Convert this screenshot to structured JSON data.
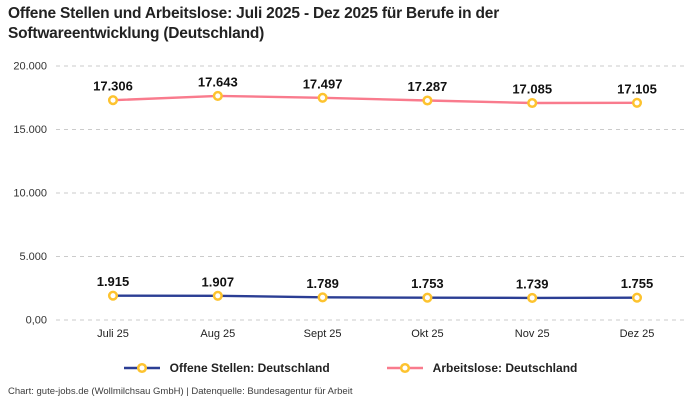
{
  "title": "Offene Stellen und Arbeitslose: Juli 2025 - Dez 2025 für Berufe in der Softwareentwicklung (Deutschland)",
  "credit": "Chart: gute-jobs.de (Wollmilchsau GmbH) | Datenquelle: Bundesagentur für Arbeit",
  "colors": {
    "series_open_positions": "#2B3E94",
    "series_unemployed": "#F97B8D",
    "marker_ring": "#FDC32F",
    "marker_fill": "#FFFFFF",
    "grid": "#CBCBCB",
    "title_text": "#222222",
    "axis_text": "#333333",
    "point_label_text": "#111111",
    "background": "#FFFFFF"
  },
  "chart_data": {
    "type": "line",
    "title": "Offene Stellen und Arbeitslose: Juli 2025 - Dez 2025 für Berufe in der Softwareentwicklung (Deutschland)",
    "categories": [
      "Juli 25",
      "Aug 25",
      "Sept 25",
      "Okt 25",
      "Nov 25",
      "Dez 25"
    ],
    "series": [
      {
        "name": "Offene Stellen: Deutschland",
        "color": "#2B3E94",
        "values": [
          1915,
          1907,
          1789,
          1753,
          1739,
          1755
        ],
        "value_labels": [
          "1.915",
          "1.907",
          "1.789",
          "1.753",
          "1.739",
          "1.755"
        ]
      },
      {
        "name": "Arbeitslose: Deutschland",
        "color": "#F97B8D",
        "values": [
          17306,
          17643,
          17497,
          17287,
          17085,
          17105
        ],
        "value_labels": [
          "17.306",
          "17.643",
          "17.497",
          "17.287",
          "17.085",
          "17.105"
        ]
      }
    ],
    "ylim": [
      0,
      20000
    ],
    "yticks": [
      {
        "value": 0,
        "label": "0,00"
      },
      {
        "value": 5000,
        "label": "5.000"
      },
      {
        "value": 10000,
        "label": "10.000"
      },
      {
        "value": 15000,
        "label": "15.000"
      },
      {
        "value": 20000,
        "label": "20.000"
      }
    ],
    "grid": "horizontal-dashed",
    "legend_position": "bottom",
    "marker": "circle-ring-yellow"
  }
}
